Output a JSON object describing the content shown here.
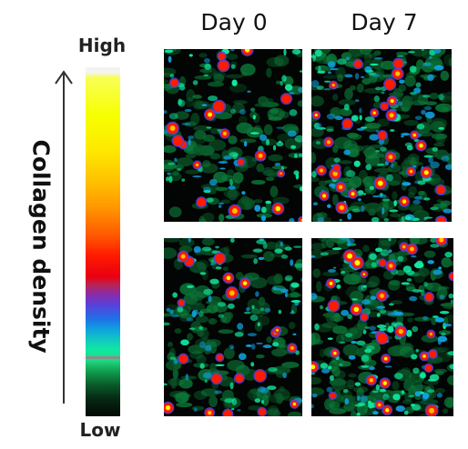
{
  "columns": [
    "Day 0",
    "Day 7"
  ],
  "scale": {
    "high": "High",
    "low": "Low"
  },
  "y_title": "Collagen density",
  "colormap": [
    "#f7ff00",
    "#ffbf00",
    "#ff1a00",
    "#5a40d8",
    "#10a0e0",
    "#10e8a0",
    "#0a5a2a",
    "#020a05"
  ],
  "panels": [
    {
      "name": "day0-top",
      "density": 0.55,
      "seed": 11
    },
    {
      "name": "day7-top",
      "density": 0.85,
      "seed": 23
    },
    {
      "name": "day0-bottom",
      "density": 0.6,
      "seed": 37
    },
    {
      "name": "day7-bottom",
      "density": 0.9,
      "seed": 51
    }
  ]
}
